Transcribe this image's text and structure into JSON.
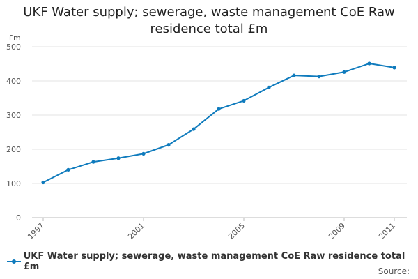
{
  "chart_data": {
    "type": "line",
    "title": "UKF Water supply; sewerage, waste management CoE Raw residence total £m",
    "title_lines": [
      "UKF Water supply; sewerage, waste management CoE Raw",
      "residence total £m"
    ],
    "ylabel": "£m",
    "xlabel": "",
    "ylim": [
      0,
      500
    ],
    "yticks": [
      "0",
      "100",
      "200",
      "300",
      "400",
      "500"
    ],
    "xlim": [
      1997,
      2011
    ],
    "xticks": [
      "1997",
      "2001",
      "2005",
      "2009",
      "2011"
    ],
    "grid": true,
    "legend_position": "bottom-left",
    "series": [
      {
        "name": "UKF Water supply; sewerage, waste management CoE Raw residence total £m",
        "color": "#0f7bbd",
        "x": [
          1997,
          1998,
          1999,
          2000,
          2001,
          2002,
          2003,
          2004,
          2005,
          2006,
          2007,
          2008,
          2009,
          2010,
          2011
        ],
        "values": [
          103,
          140,
          163,
          174,
          187,
          213,
          259,
          318,
          342,
          381,
          416,
          413,
          426,
          451,
          439
        ]
      }
    ]
  },
  "footer": {
    "source_label": "Source:"
  }
}
